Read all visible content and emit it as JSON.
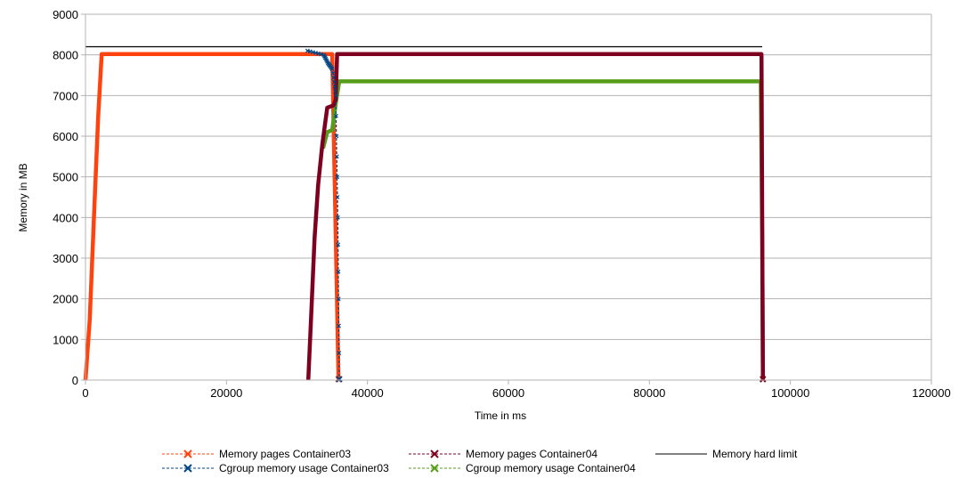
{
  "chart_data": {
    "type": "line",
    "title": "",
    "xlabel": "Time in ms",
    "ylabel": "Memory in MB",
    "xlim": [
      0,
      120000
    ],
    "ylim": [
      0,
      9000
    ],
    "xticks": [
      0,
      20000,
      40000,
      60000,
      80000,
      100000,
      120000
    ],
    "yticks": [
      0,
      1000,
      2000,
      3000,
      4000,
      5000,
      6000,
      7000,
      8000,
      9000
    ],
    "grid": "horizontal",
    "legend_position": "bottom",
    "series": [
      {
        "name": "Memory pages Container03",
        "color": "#ff420e",
        "marker": "x",
        "points": [
          [
            0,
            0
          ],
          [
            600,
            1500
          ],
          [
            1200,
            4000
          ],
          [
            1800,
            6500
          ],
          [
            2300,
            8020
          ],
          [
            35000,
            8020
          ],
          [
            35900,
            0
          ]
        ]
      },
      {
        "name": "Cgroup memory usage Container03",
        "color": "#004586",
        "marker": "x",
        "points": [
          [
            31500,
            8100
          ],
          [
            33800,
            8000
          ],
          [
            34400,
            7800
          ],
          [
            35000,
            7650
          ],
          [
            35500,
            7000
          ],
          [
            35800,
            4000
          ],
          [
            36000,
            0
          ]
        ]
      },
      {
        "name": "Memory pages Container04",
        "color": "#7e0021",
        "marker": "x",
        "points": [
          [
            31600,
            0
          ],
          [
            32000,
            1500
          ],
          [
            32500,
            3500
          ],
          [
            33000,
            4800
          ],
          [
            33600,
            5800
          ],
          [
            34300,
            6700
          ],
          [
            35200,
            6760
          ],
          [
            35500,
            6900
          ],
          [
            35700,
            8020
          ],
          [
            95900,
            8020
          ],
          [
            96100,
            0
          ]
        ]
      },
      {
        "name": "Cgroup memory usage Container04",
        "color": "#579d1c",
        "marker": "x",
        "points": [
          [
            33700,
            5700
          ],
          [
            34300,
            6100
          ],
          [
            35000,
            6150
          ],
          [
            35500,
            6800
          ],
          [
            36000,
            7350
          ],
          [
            95800,
            7350
          ],
          [
            96000,
            3500
          ],
          [
            96100,
            0
          ]
        ]
      },
      {
        "name": "Memory hard limit",
        "color": "#000000",
        "marker": "none",
        "points": [
          [
            0,
            8200
          ],
          [
            96000,
            8200
          ]
        ]
      }
    ]
  }
}
